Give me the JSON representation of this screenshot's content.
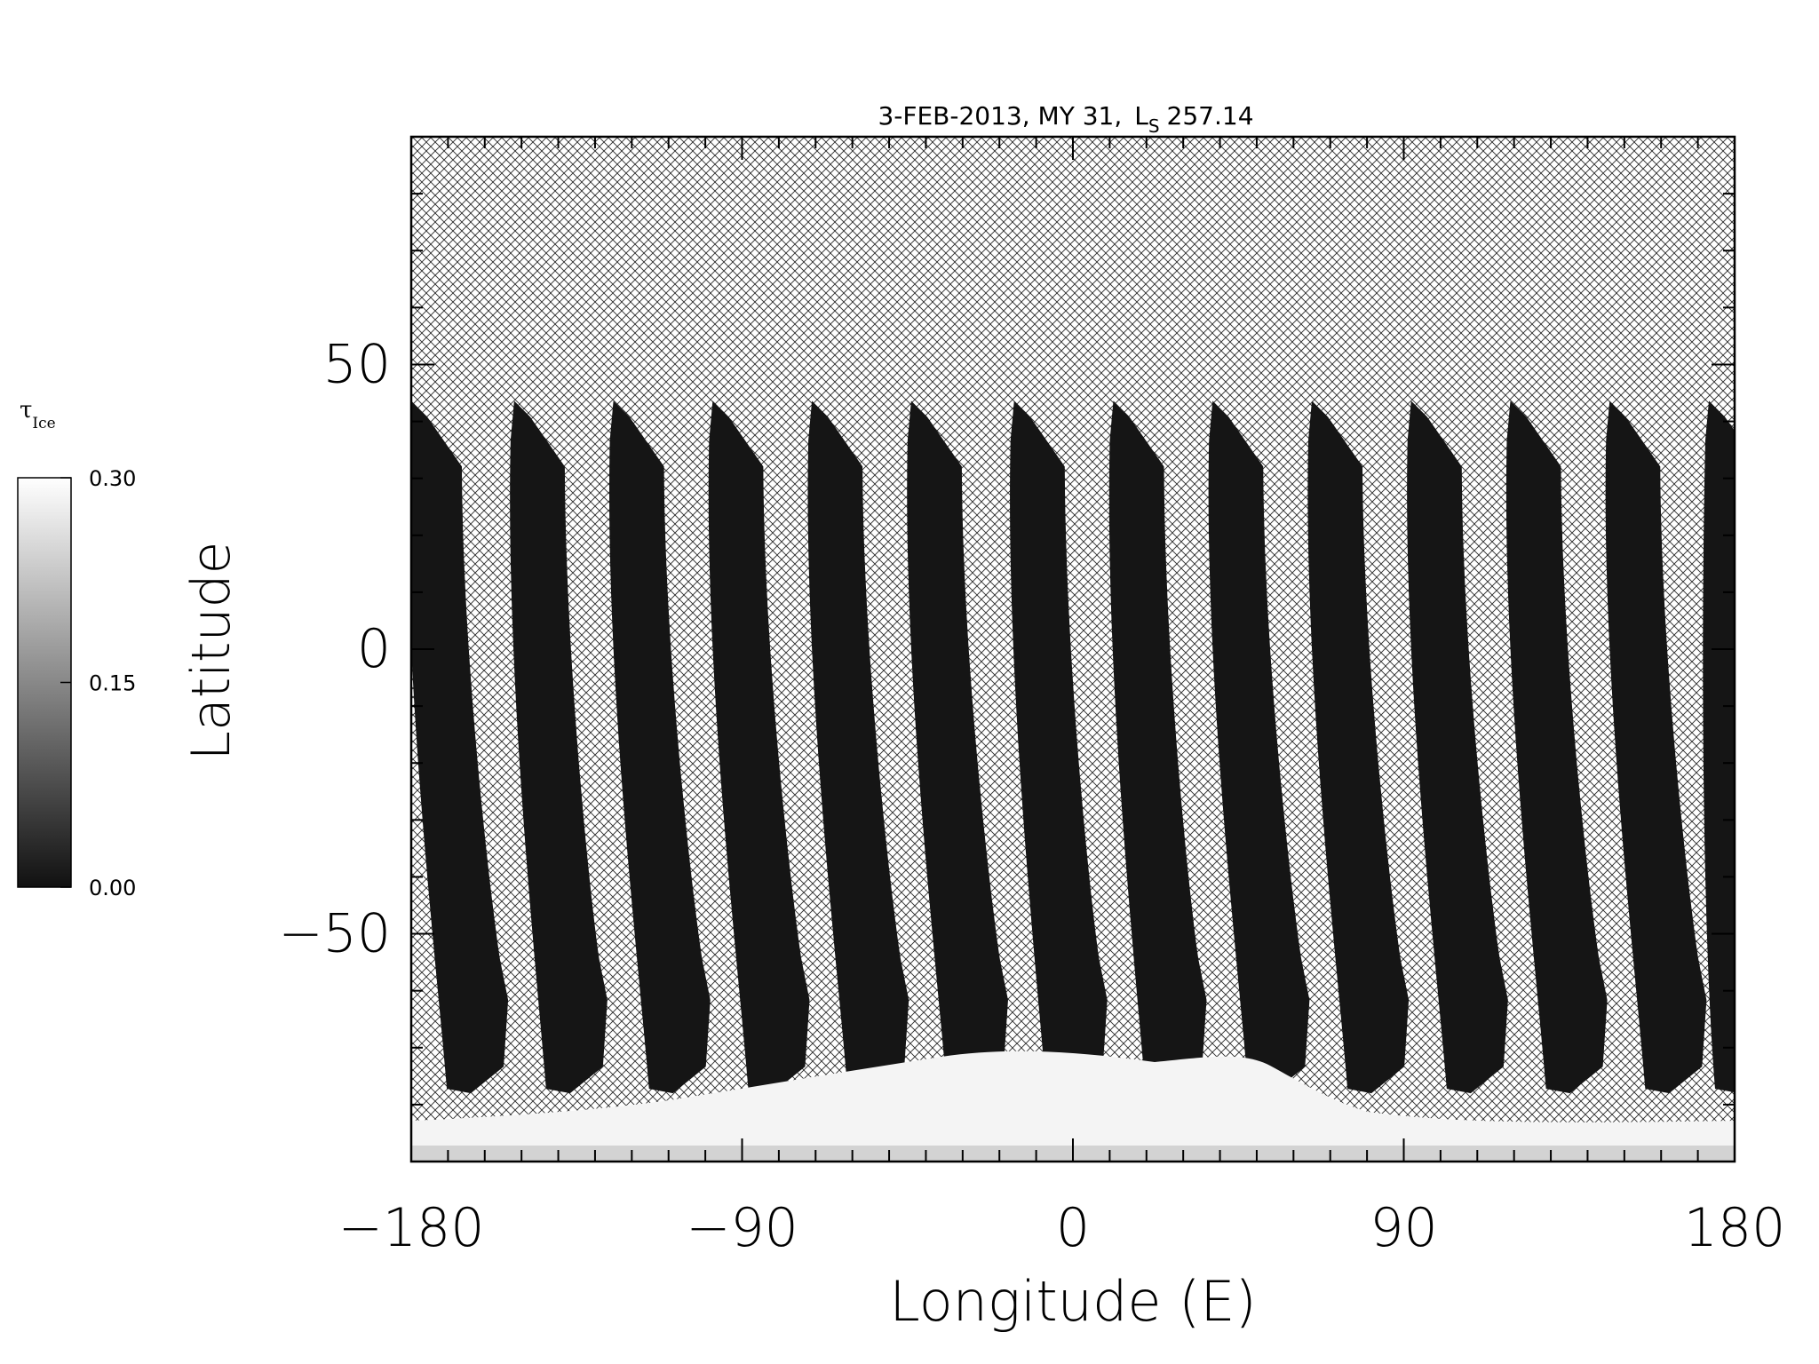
{
  "chart_data": {
    "type": "heatmap",
    "title": "3-FEB-2013, MY 31,",
    "title_ls_symbol": "L",
    "title_ls_subscript": "S",
    "title_ls_value": "257.14",
    "xlabel": "Longitude (E)",
    "ylabel": "Latitude",
    "xlim": [
      -180,
      180
    ],
    "ylim": [
      -90,
      90
    ],
    "x_ticks": [
      -180,
      -90,
      0,
      90,
      180
    ],
    "x_tick_labels": [
      "−180",
      "−90",
      "0",
      "90",
      "180"
    ],
    "y_ticks": [
      50,
      0,
      -50
    ],
    "y_tick_labels": [
      "50",
      "0",
      "−50"
    ],
    "grid": false,
    "colorbar": {
      "label_symbol": "τ",
      "label_subscript": "Ice",
      "min": 0.0,
      "max": 0.3,
      "tick_values": [
        0.3,
        0.15,
        0.0
      ],
      "tick_labels": [
        "0.30",
        "0.15",
        "0.00"
      ],
      "colors": [
        "#111111",
        "#ffffff"
      ]
    },
    "no_data_fill": "cross-hatched",
    "swath_fill_color": "#151515",
    "polar_cap_color": "#f4f4f4",
    "swaths": [
      {
        "lon_top": -180,
        "lon_bottom": -165
      },
      {
        "lon_top": -152,
        "lon_bottom": -138
      },
      {
        "lon_top": -125,
        "lon_bottom": -110
      },
      {
        "lon_top": -98,
        "lon_bottom": -83
      },
      {
        "lon_top": -71,
        "lon_bottom": -56
      },
      {
        "lon_top": -44,
        "lon_bottom": -29
      },
      {
        "lon_top": -16,
        "lon_bottom": -2
      },
      {
        "lon_top": 11,
        "lon_bottom": 25
      },
      {
        "lon_top": 38,
        "lon_bottom": 53
      },
      {
        "lon_top": 65,
        "lon_bottom": 80
      },
      {
        "lon_top": 92,
        "lon_bottom": 107
      },
      {
        "lon_top": 119,
        "lon_bottom": 134
      },
      {
        "lon_top": 146,
        "lon_bottom": 161
      },
      {
        "lon_top": 173,
        "lon_bottom": 180
      }
    ],
    "swath_lat_top": 43,
    "swath_lat_bottom": -78
  }
}
